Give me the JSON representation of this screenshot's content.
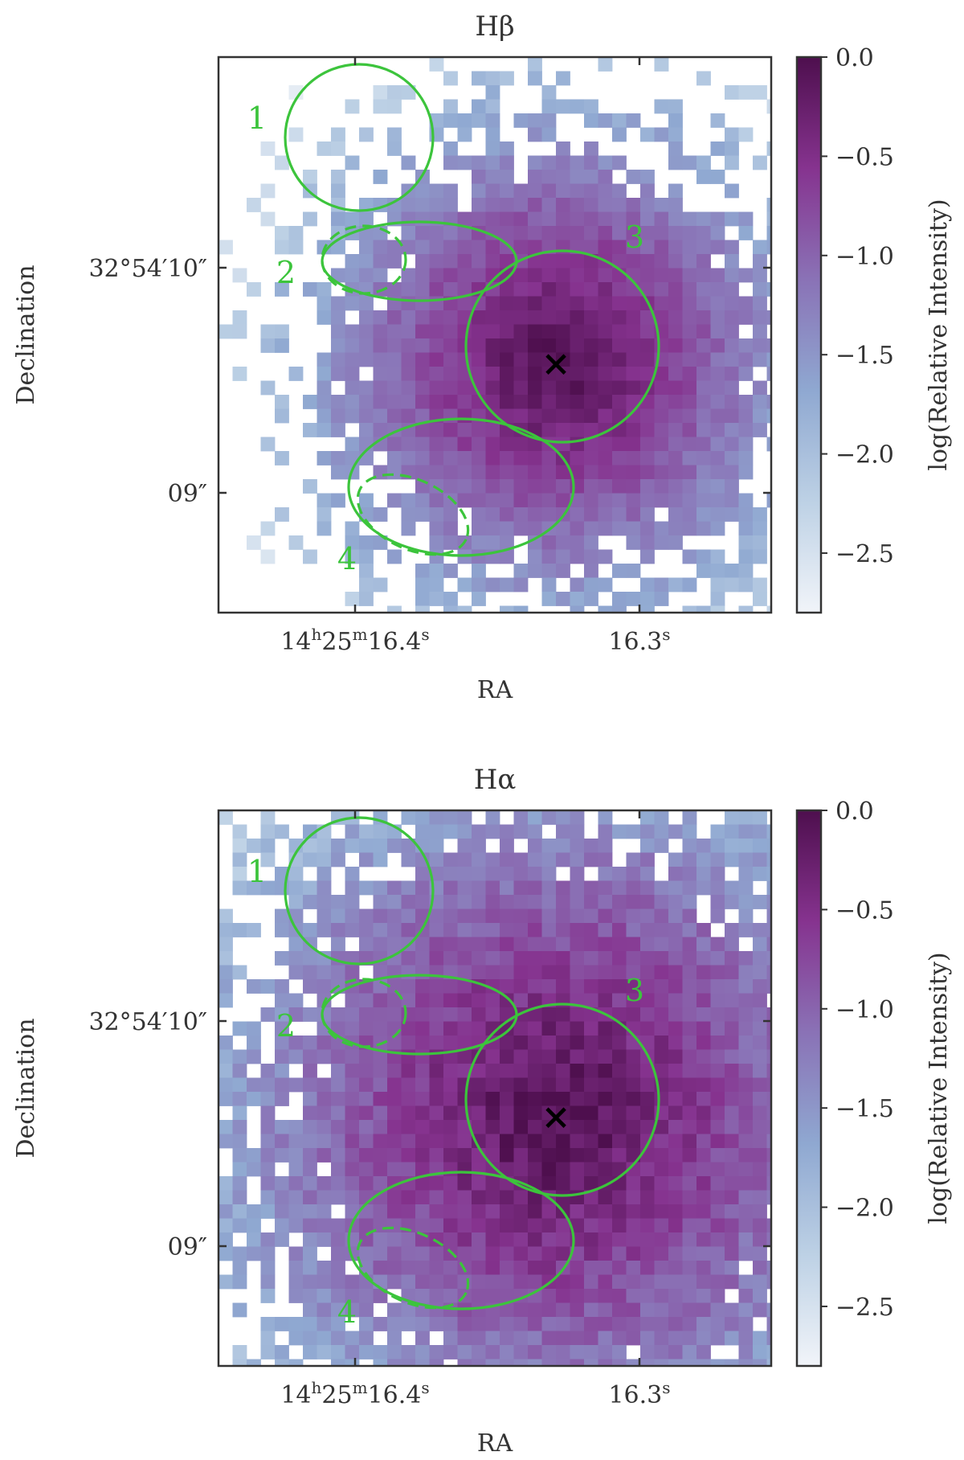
{
  "chart_data": [
    {
      "type": "heatmap",
      "title": "Hβ",
      "xlabel": "RA",
      "ylabel": "Declination",
      "x_ticks": [
        {
          "label_main": "14",
          "sup1": "h",
          "mid": "25",
          "sup2": "m",
          "tail": "16.4",
          "sup3": "s",
          "ra_sec": 16.4
        },
        {
          "label_main": "16.3",
          "sup3": "s",
          "ra_sec": 16.3
        }
      ],
      "y_ticks": [
        {
          "label": "32°54′10″",
          "dec_arcsec": 10
        },
        {
          "label": "09″",
          "dec_arcsec": 9
        }
      ],
      "colorbar": {
        "label": "log(Relative Intensity)",
        "range": [
          -2.8,
          0.0
        ],
        "ticks": [
          "0.0",
          "−0.5",
          "−1.0",
          "−1.5",
          "−2.0",
          "−2.5"
        ],
        "tick_values": [
          0.0,
          -0.5,
          -1.0,
          -1.5,
          -2.0,
          -2.5
        ],
        "colors": [
          "#f1f4f9",
          "#bdd1e5",
          "#8fa8d1",
          "#8a72b6",
          "#86338f",
          "#4e0f4e"
        ]
      },
      "peak_marker": "×",
      "emission": {
        "core_halfwidth_arcsec": 0.55,
        "extent_arcsec": 0.9,
        "noise": 0.35
      },
      "regions": [
        {
          "id": "1",
          "label": "1",
          "has_dashed": false
        },
        {
          "id": "2",
          "label": "2",
          "has_dashed": true
        },
        {
          "id": "3",
          "label": "3",
          "has_dashed": false
        },
        {
          "id": "4",
          "label": "4",
          "has_dashed": true
        }
      ],
      "region_color": "#3cc43c"
    },
    {
      "type": "heatmap",
      "title": "Hα",
      "xlabel": "RA",
      "ylabel": "Declination",
      "x_ticks": [
        {
          "label_main": "14",
          "sup1": "h",
          "mid": "25",
          "sup2": "m",
          "tail": "16.4",
          "sup3": "s",
          "ra_sec": 16.4
        },
        {
          "label_main": "16.3",
          "sup3": "s",
          "ra_sec": 16.3
        }
      ],
      "y_ticks": [
        {
          "label": "32°54′10″",
          "dec_arcsec": 10
        },
        {
          "label": "09″",
          "dec_arcsec": 9
        }
      ],
      "colorbar": {
        "label": "log(Relative Intensity)",
        "range": [
          -2.8,
          0.0
        ],
        "ticks": [
          "0.0",
          "−0.5",
          "−1.0",
          "−1.5",
          "−2.0",
          "−2.5"
        ],
        "tick_values": [
          0.0,
          -0.5,
          -1.0,
          -1.5,
          -2.0,
          -2.5
        ],
        "colors": [
          "#f1f4f9",
          "#bdd1e5",
          "#8fa8d1",
          "#8a72b6",
          "#86338f",
          "#4e0f4e"
        ]
      },
      "peak_marker": "×",
      "emission": {
        "core_halfwidth_arcsec": 0.75,
        "extent_arcsec": 1.6,
        "noise": 0.45
      },
      "regions": [
        {
          "id": "1",
          "label": "1",
          "has_dashed": false
        },
        {
          "id": "2",
          "label": "2",
          "has_dashed": true
        },
        {
          "id": "3",
          "label": "3",
          "has_dashed": false
        },
        {
          "id": "4",
          "label": "4",
          "has_dashed": true
        }
      ],
      "region_color": "#3cc43c"
    }
  ]
}
